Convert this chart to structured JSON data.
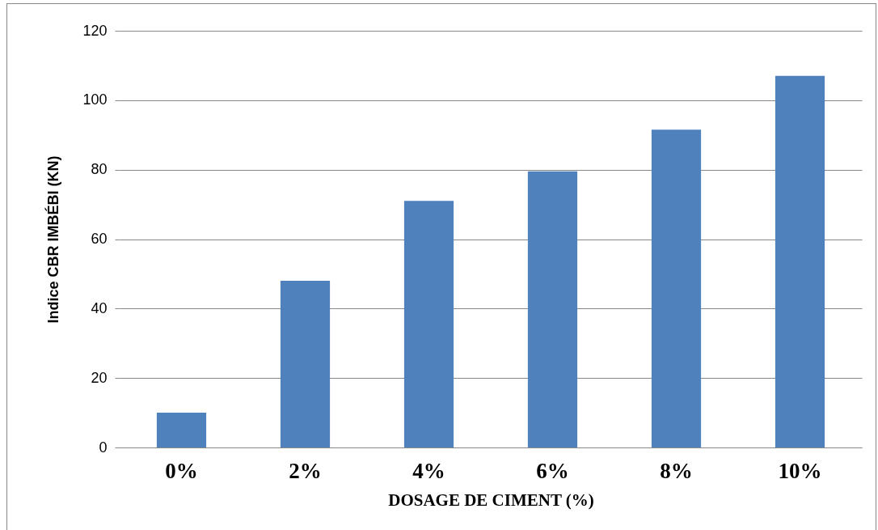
{
  "chart_data": {
    "type": "bar",
    "xlabel": "DOSAGE DE CIMENT (%)",
    "ylabel": "Indice  CBR IMBÉBI (KN)",
    "categories": [
      "0%",
      "2%",
      "4%",
      "6%",
      "8%",
      "10%"
    ],
    "values": [
      10,
      48,
      71,
      79.5,
      91.5,
      107
    ],
    "color": "#4f81bd",
    "ylim": [
      0,
      120
    ],
    "yticks": [
      0,
      20,
      40,
      60,
      80,
      100,
      120
    ],
    "grid": "y"
  }
}
